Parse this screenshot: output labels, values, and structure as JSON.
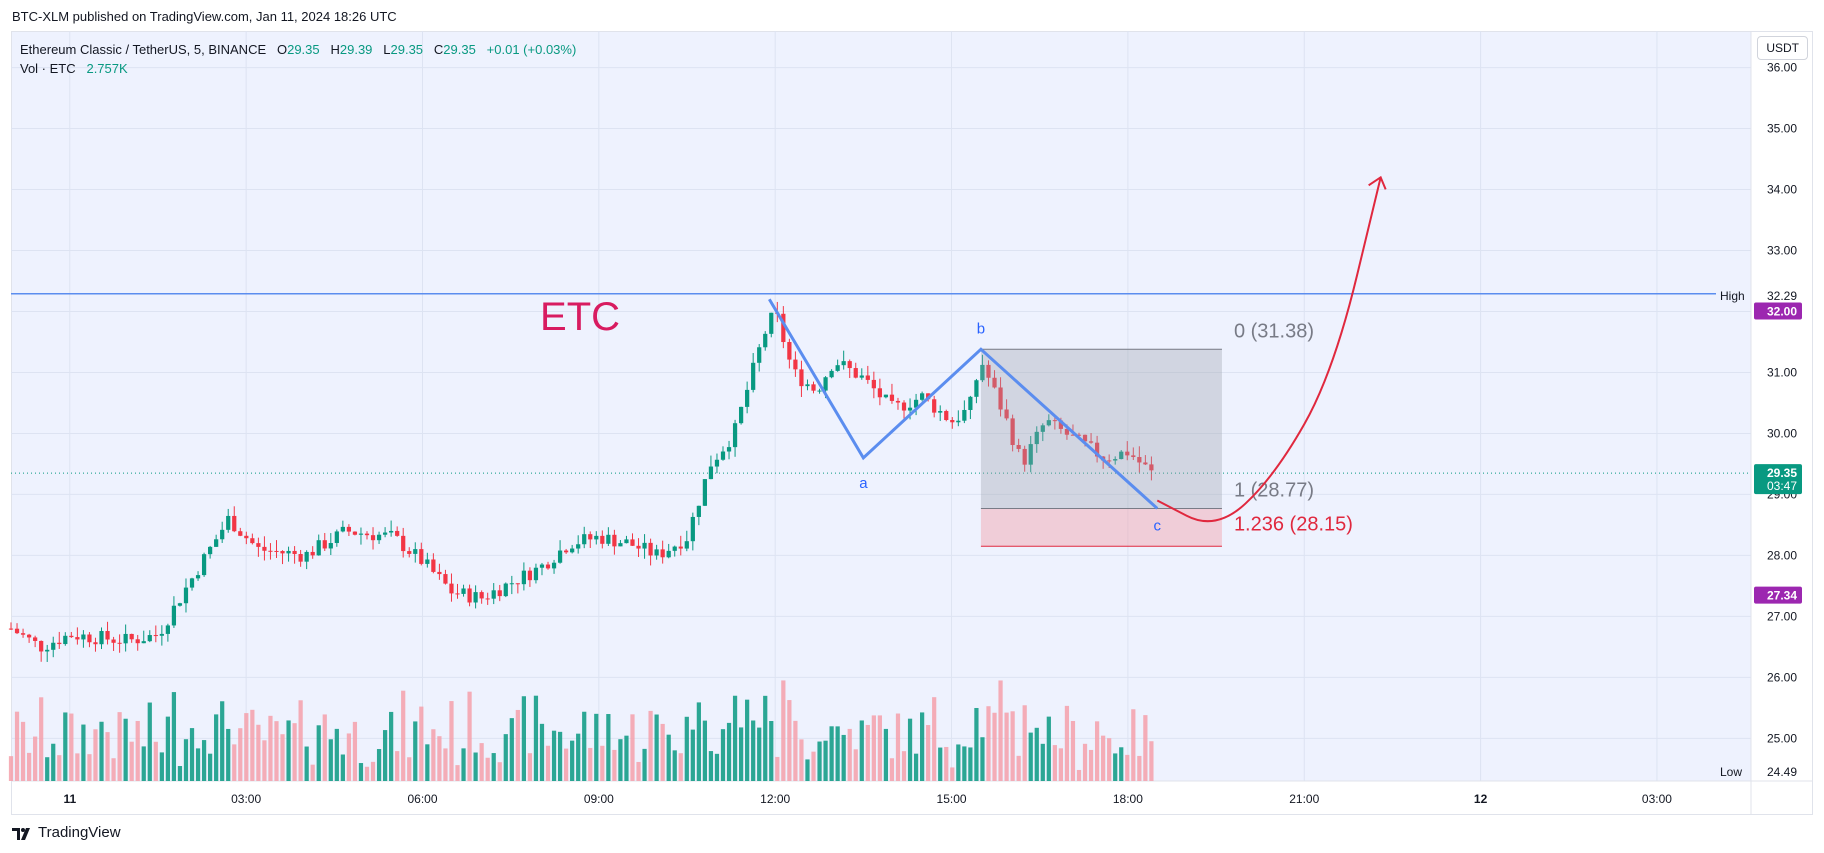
{
  "header": {
    "published_text": "BTC-XLM published on TradingView.com, Jan 11, 2024 18:26 UTC"
  },
  "legend": {
    "symbol_line": "Ethereum Classic / TetherUS, 5, BINANCE",
    "o_label": "O",
    "o_value": "29.35",
    "h_label": "H",
    "h_value": "29.39",
    "l_label": "L",
    "l_value": "29.35",
    "c_label": "C",
    "c_value": "29.35",
    "change": "+0.01 (+0.03%)",
    "vol_label": "Vol · ETC",
    "vol_value": "2.757K"
  },
  "unit_button": "USDT",
  "footer": {
    "brand": "TradingView"
  },
  "colors": {
    "up": "#089981",
    "down": "#f23645",
    "pattern": "#5b8def",
    "fib_red": "#e0283e",
    "high_line": "#5b8def",
    "label_purple": "#9c27b0",
    "price_tag": "#089981",
    "etc_text": "#d81b60"
  },
  "chart_data": {
    "type": "candlestick",
    "symbol": "Ethereum Classic / TetherUS",
    "interval": "5",
    "exchange": "BINANCE",
    "ylim": [
      24.3,
      36.6
    ],
    "y_ticks": [
      "36.00",
      "35.00",
      "34.00",
      "33.00",
      "32.00",
      "31.00",
      "30.00",
      "29.00",
      "28.00",
      "27.00",
      "26.00",
      "25.00"
    ],
    "x_ticks": [
      "11",
      "03:00",
      "06:00",
      "09:00",
      "12:00",
      "15:00",
      "18:00",
      "21:00",
      "12",
      "03:00"
    ],
    "x_tick_hours": [
      0,
      3,
      6,
      9,
      12,
      15,
      18,
      21,
      24,
      27
    ],
    "x_range_hours": [
      -1.0,
      28.6
    ],
    "price_keypoints": [
      [
        -1.0,
        26.8
      ],
      [
        -0.5,
        26.5
      ],
      [
        0.0,
        26.7
      ],
      [
        1.0,
        26.6
      ],
      [
        1.5,
        26.7
      ],
      [
        2.0,
        27.5
      ],
      [
        2.7,
        28.6
      ],
      [
        3.2,
        28.1
      ],
      [
        4.0,
        28.0
      ],
      [
        4.7,
        28.4
      ],
      [
        5.5,
        28.3
      ],
      [
        6.0,
        27.9
      ],
      [
        6.5,
        27.4
      ],
      [
        7.0,
        27.3
      ],
      [
        8.0,
        27.8
      ],
      [
        8.5,
        28.2
      ],
      [
        9.0,
        28.3
      ],
      [
        9.5,
        28.2
      ],
      [
        10.0,
        28.0
      ],
      [
        10.5,
        28.3
      ],
      [
        10.9,
        29.5
      ],
      [
        11.3,
        30.0
      ],
      [
        11.8,
        31.6
      ],
      [
        12.0,
        32.0
      ],
      [
        12.3,
        31.0
      ],
      [
        12.7,
        30.7
      ],
      [
        13.0,
        31.2
      ],
      [
        13.5,
        30.9
      ],
      [
        14.0,
        30.4
      ],
      [
        14.5,
        30.6
      ],
      [
        15.0,
        30.2
      ],
      [
        15.3,
        30.4
      ],
      [
        15.5,
        31.2
      ],
      [
        15.9,
        30.3
      ],
      [
        16.2,
        29.5
      ],
      [
        16.6,
        30.2
      ],
      [
        17.1,
        29.9
      ],
      [
        17.6,
        29.6
      ],
      [
        18.0,
        29.7
      ],
      [
        18.4,
        29.35
      ]
    ],
    "volume_bars_count": 190,
    "levels": {
      "high": {
        "label": "High",
        "value": "32.29"
      },
      "low": {
        "label": "Low",
        "value": "24.49"
      },
      "purple_top": "32.00",
      "purple_bottom": "27.34",
      "last_price": "29.35",
      "countdown": "03:47"
    },
    "annotations": {
      "etc_label": "ETC",
      "wave_a": "a",
      "wave_b": "b",
      "wave_c": "c",
      "fib_0": "0 (31.38)",
      "fib_1": "1 (28.77)",
      "fib_1236": "1.236 (28.15)",
      "fib_values": [
        31.38,
        28.77,
        28.15
      ],
      "pattern_points": [
        [
          11.9,
          32.2
        ],
        [
          13.5,
          29.6
        ],
        [
          15.5,
          31.38
        ],
        [
          18.5,
          28.77
        ]
      ],
      "projection_points": [
        [
          18.5,
          28.9
        ],
        [
          19.5,
          28.4
        ],
        [
          20.5,
          29.3
        ],
        [
          21.5,
          31.0
        ],
        [
          22.3,
          34.2
        ]
      ]
    }
  }
}
